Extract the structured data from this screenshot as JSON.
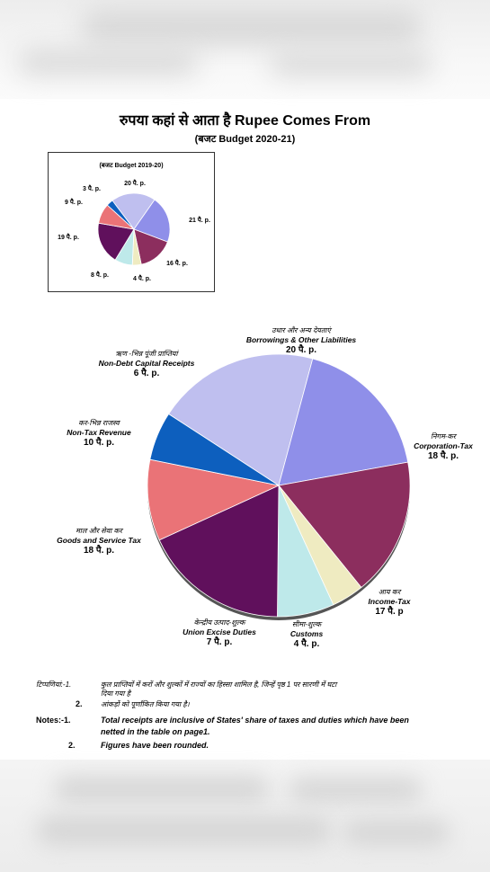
{
  "page": {
    "title": "रुपया कहां से आता है Rupee Comes From",
    "subtitle": "(बजट Budget 2020-21)"
  },
  "chart_data": [
    {
      "type": "pie",
      "title": "रुपया कहां से आता है Rupee Comes From",
      "subtitle": "(बजट Budget 2020-21)",
      "unit": "पै. p.",
      "slices": [
        {
          "label_hi": "उधार और अन्य देयताएं",
          "label_en": "Borrowings & Other Liabilities",
          "value": 20,
          "value_label": "20 पै. p.",
          "color": "#BFBFEF"
        },
        {
          "label_hi": "निगम-कर",
          "label_en": "Corporation-Tax",
          "value": 18,
          "value_label": "18 पै. p.",
          "color": "#8F8FE9"
        },
        {
          "label_hi": "आय कर",
          "label_en": "Income-Tax",
          "value": 17,
          "value_label": "17 पै. p",
          "color": "#8C2E5E"
        },
        {
          "label_hi": "सीमा-शुल्क",
          "label_en": "Customs",
          "value": 4,
          "value_label": "4 पै. p.",
          "color": "#EFEBC1"
        },
        {
          "label_hi": "केन्द्रीय उत्पाद-शुल्क",
          "label_en": "Union Excise Duties",
          "value": 7,
          "value_label": "7 पै. p.",
          "color": "#BEE9EA"
        },
        {
          "label_hi": "माल और सेवा कर",
          "label_en": "Goods and Service Tax",
          "value": 18,
          "value_label": "18 पै. p.",
          "color": "#60105C"
        },
        {
          "label_hi": "कर-भिन्न राजस्व",
          "label_en": "Non-Tax Revenue",
          "value": 10,
          "value_label": "10 पै. p.",
          "color": "#EA7377"
        },
        {
          "label_hi": "ऋण -भिन्न पूंजी प्राप्तियां",
          "label_en": "Non-Debt Capital Receipts",
          "value": 6,
          "value_label": "6 पै. p.",
          "color": "#0D5FBE"
        }
      ]
    },
    {
      "type": "pie",
      "title": "(बजट Budget 2019-20)",
      "slices": [
        {
          "value": 20,
          "value_label": "20 पै. p.",
          "color": "#BFBFEF"
        },
        {
          "value": 21,
          "value_label": "21 पै. p.",
          "color": "#8F8FE9"
        },
        {
          "value": 16,
          "value_label": "16 पै. p.",
          "color": "#8C2E5E"
        },
        {
          "value": 4,
          "value_label": "4 पै. p.",
          "color": "#EFEBC1"
        },
        {
          "value": 8,
          "value_label": "8 पै. p.",
          "color": "#BEE9EA"
        },
        {
          "value": 19,
          "value_label": "19 पै. p.",
          "color": "#60105C"
        },
        {
          "value": 9,
          "value_label": "9 पै. p.",
          "color": "#EA7377"
        },
        {
          "value": 3,
          "value_label": "3 पै. p.",
          "color": "#0D5FBE"
        }
      ]
    }
  ],
  "notes": {
    "hi_label": "टिप्पणियां:-1.",
    "hi_1": "कुल प्राप्तियों में करों और शुल्कों में राज्यों का हिस्सा शामिल है, जिन्हें पृष्ठ 1 पर सारणी में घटा",
    "hi_1b": "दिया गया है",
    "hi_num2": "2.",
    "hi_2": "आंकड़ों को पूर्णांकित किया गया है।",
    "en_label": "Notes:-1.",
    "en_1": "Total receipts are inclusive of States' share of taxes and duties which have been",
    "en_1b": "netted in the table on page1.",
    "en_num2": "2.",
    "en_2": "Figures have been rounded."
  }
}
